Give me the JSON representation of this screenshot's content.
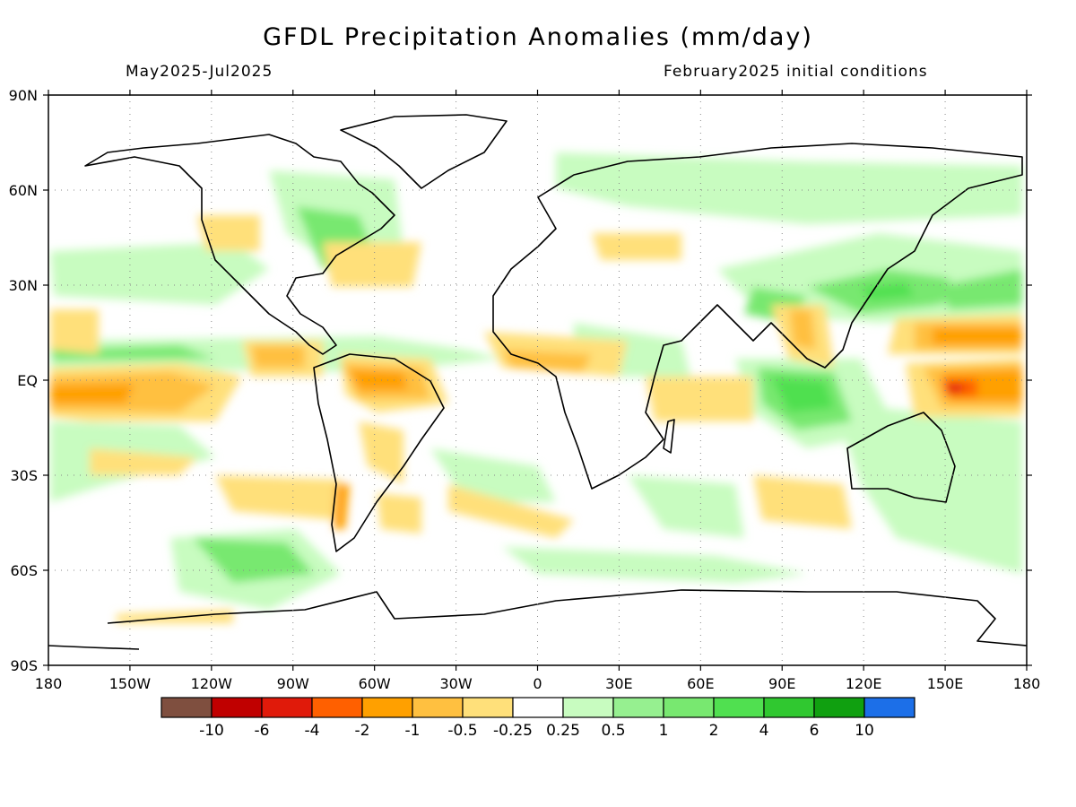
{
  "title": "GFDL Precipitation Anomalies (mm/day)",
  "subtitle_left": "May2025-Jul2025",
  "subtitle_right": "February2025 initial conditions",
  "map": {
    "lat_labels": [
      "90N",
      "60N",
      "30N",
      "EQ",
      "30S",
      "60S",
      "90S"
    ],
    "lon_labels": [
      "180",
      "150W",
      "120W",
      "90W",
      "60W",
      "30W",
      "0",
      "30E",
      "60E",
      "90E",
      "120E",
      "150E",
      "180"
    ],
    "lon_range": [
      -180,
      180
    ],
    "lat_range": [
      -90,
      90
    ],
    "grid": "dotted",
    "ocean_color": "#ffffff",
    "coastline_color": "#000000"
  },
  "colorbar": {
    "colors": [
      "#7f4f3f",
      "#c00000",
      "#e01a0a",
      "#ff6000",
      "#ffa000",
      "#ffc040",
      "#ffe07a",
      "#ffffff",
      "#c8fcc0",
      "#96f090",
      "#78e870",
      "#50e050",
      "#30c830",
      "#10a010",
      "#1c6fe8"
    ],
    "labels": [
      "-10",
      "-6",
      "-4",
      "-2",
      "-1",
      "-0.5",
      "-0.25",
      "0.25",
      "0.5",
      "1",
      "2",
      "4",
      "6",
      "10"
    ]
  }
}
